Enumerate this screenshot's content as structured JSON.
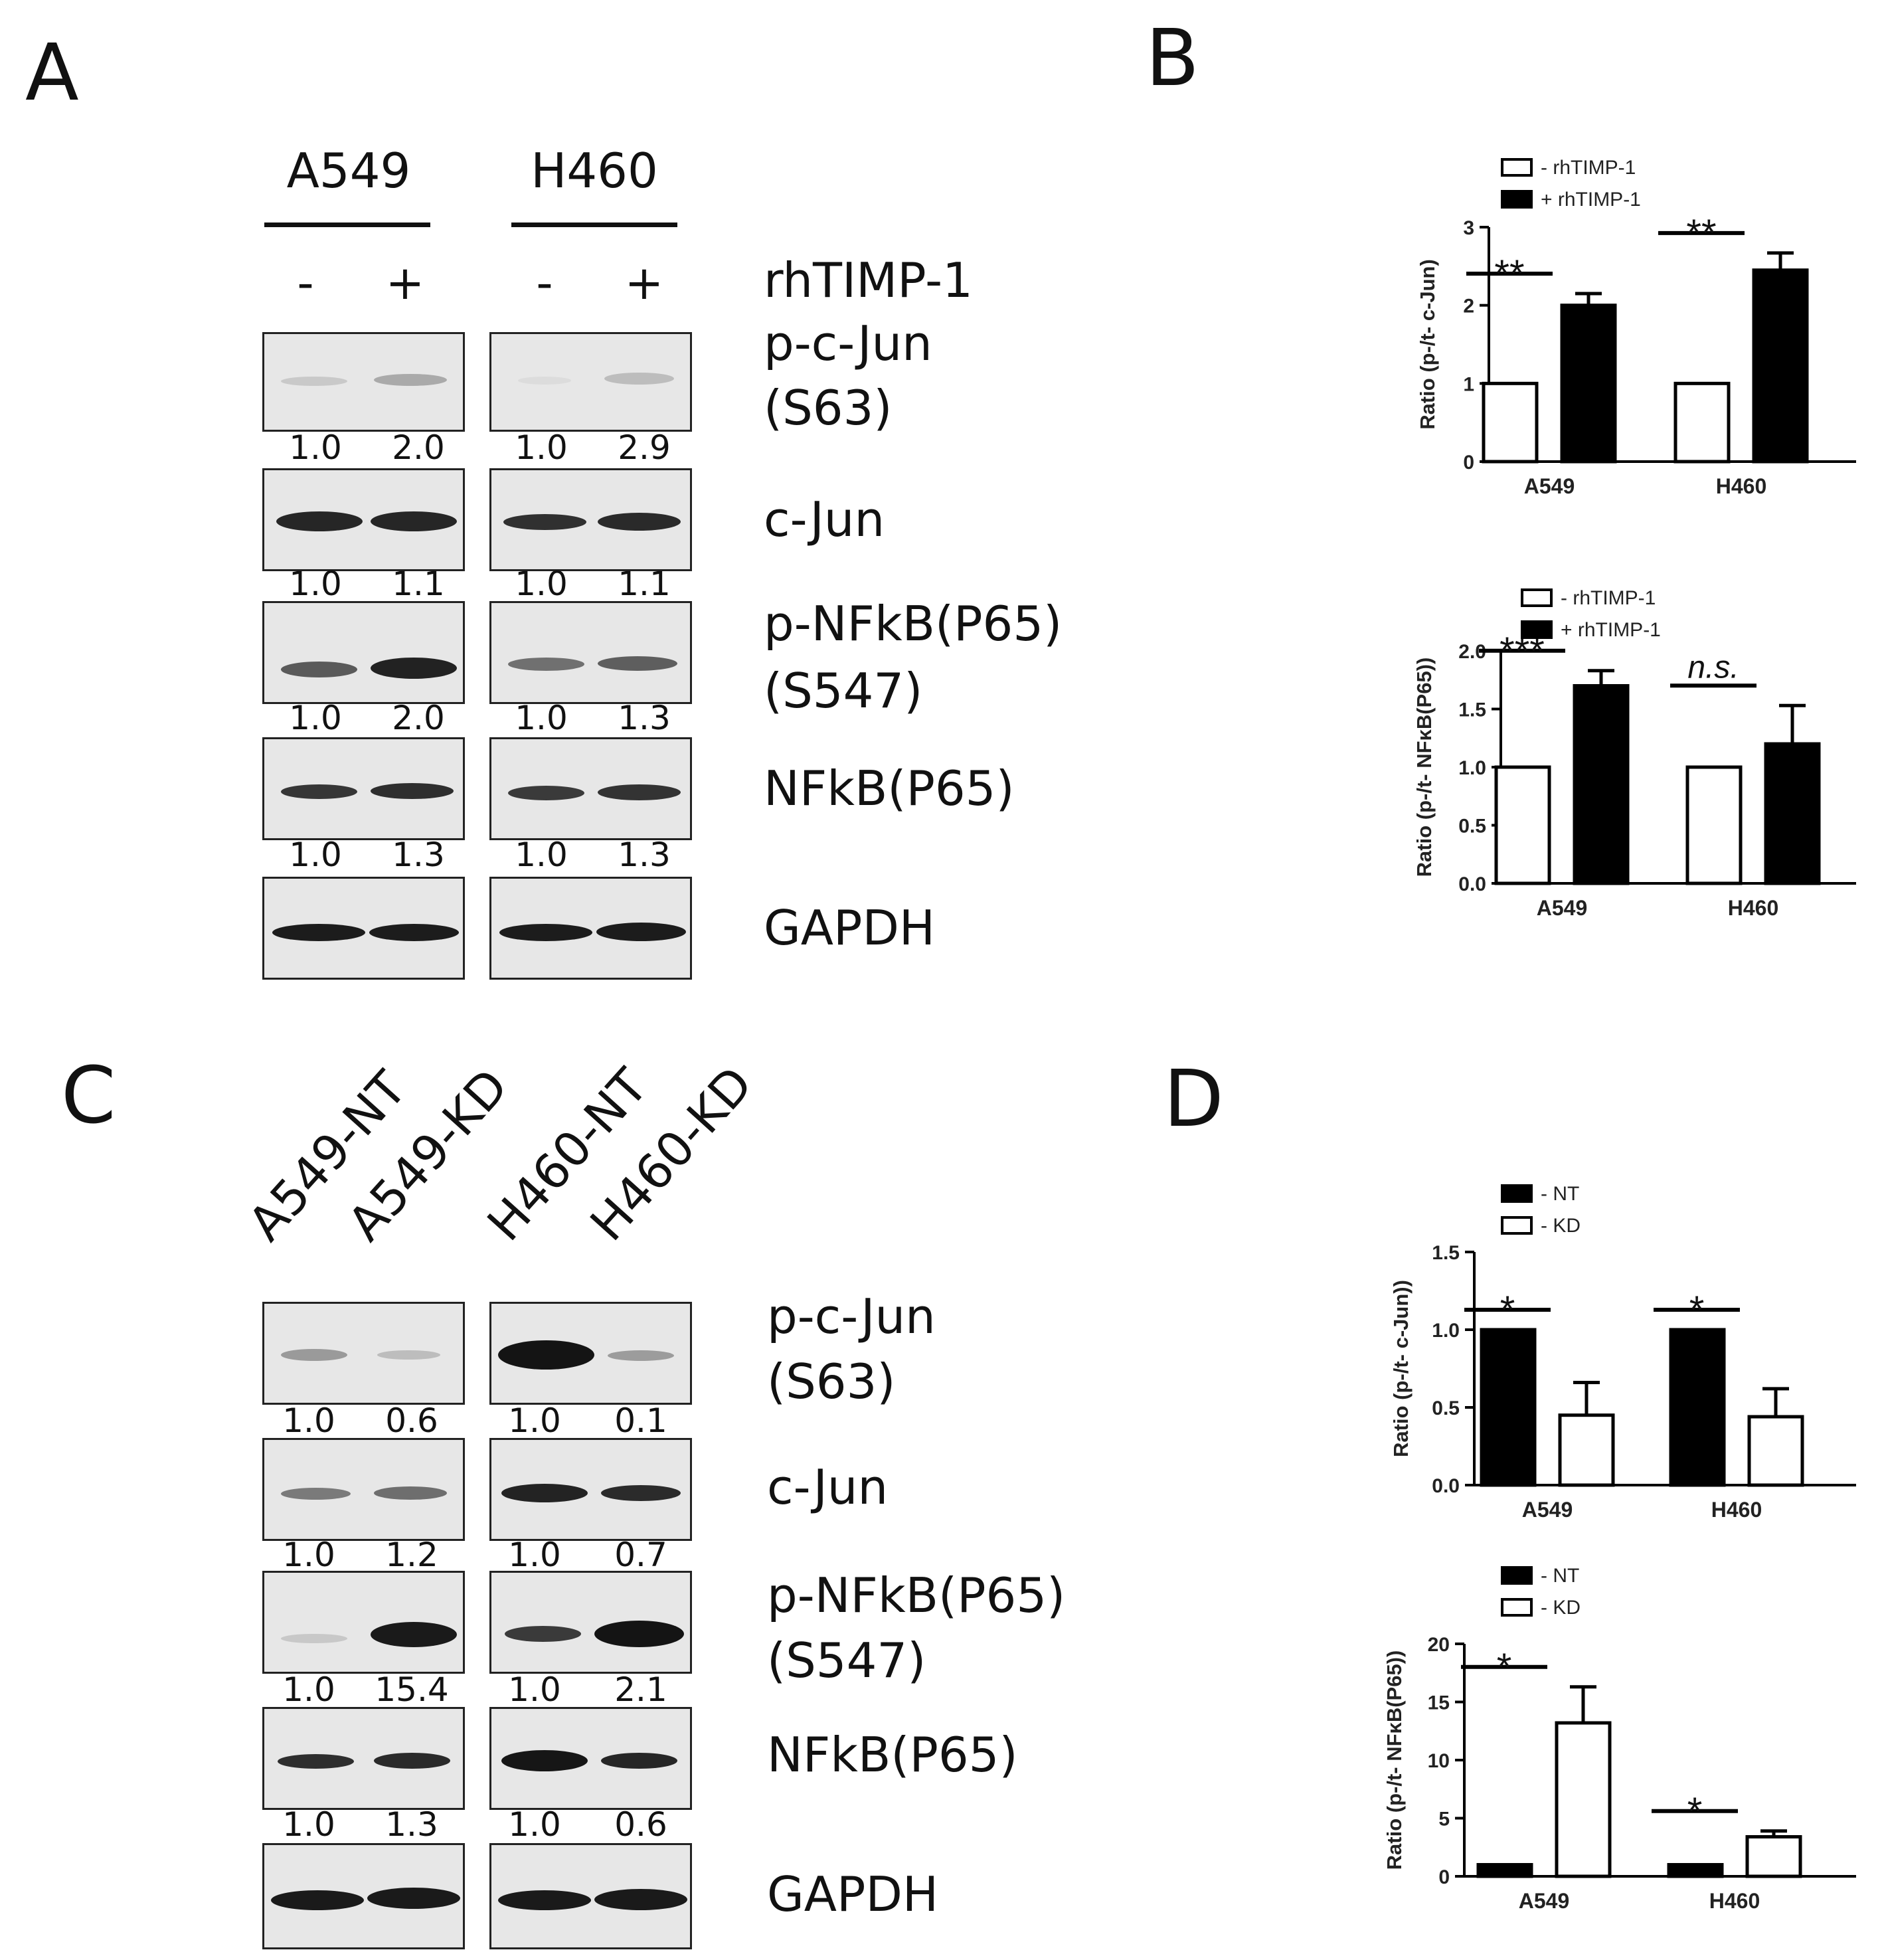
{
  "panels": {
    "A": "A",
    "B": "B",
    "C": "C",
    "D": "D"
  },
  "panel_a": {
    "cell_lines": [
      "A549",
      "H460"
    ],
    "treatment_label": "rhTIMP-1",
    "treat_signs": [
      "-",
      "+",
      "-",
      "+"
    ],
    "blot_labels": [
      "p-c-Jun",
      "(S63)",
      "c-Jun",
      "p-NFkB(P65)",
      "(S547)",
      "NFkB(P65)",
      "GAPDH"
    ],
    "quant": [
      [
        "1.0",
        "2.0",
        "1.0",
        "2.9"
      ],
      [
        "1.0",
        "1.1",
        "1.0",
        "1.1"
      ],
      [
        "1.0",
        "2.0",
        "1.0",
        "1.3"
      ],
      [
        "1.0",
        "1.3",
        "1.0",
        "1.3"
      ]
    ]
  },
  "panel_c": {
    "lanes": [
      "A549-NT",
      "A549-KD",
      "H460-NT",
      "H460-KD"
    ],
    "blot_labels": [
      "p-c-Jun",
      "(S63)",
      "c-Jun",
      "p-NFkB(P65)",
      "(S547)",
      "NFkB(P65)",
      "GAPDH"
    ],
    "quant": [
      [
        "1.0",
        "0.6",
        "1.0",
        "0.1"
      ],
      [
        "1.0",
        "1.2",
        "1.0",
        "0.7"
      ],
      [
        "1.0",
        "15.4",
        "1.0",
        "2.1"
      ],
      [
        "1.0",
        "1.3",
        "1.0",
        "0.6"
      ]
    ]
  },
  "chart_data": [
    {
      "type": "bar",
      "panel": "B",
      "categories": [
        "A549",
        "H460"
      ],
      "series": [
        {
          "name": "- rhTIMP-1",
          "values": [
            1,
            1
          ],
          "errors": [
            0,
            0
          ],
          "fill": "#ffffff"
        },
        {
          "name": "+ rhTIMP-1",
          "values": [
            2.0,
            2.45
          ],
          "errors": [
            0.15,
            0.22
          ],
          "fill": "#000000"
        }
      ],
      "ylabel": "Ratio (p-/t- c-Jun)",
      "ylim": [
        0,
        3
      ],
      "yticks": [
        0,
        1,
        2,
        3
      ],
      "yticklabels": [
        "0",
        "1",
        "2",
        "3"
      ],
      "significance": [
        "**",
        "**"
      ],
      "legend": "top-left"
    },
    {
      "type": "bar",
      "panel": "B",
      "categories": [
        "A549",
        "H460"
      ],
      "series": [
        {
          "name": "- rhTIMP-1",
          "values": [
            1,
            1
          ],
          "errors": [
            0,
            0
          ],
          "fill": "#ffffff"
        },
        {
          "name": "+ rhTIMP-1",
          "values": [
            1.7,
            1.2
          ],
          "errors": [
            0.13,
            0.33
          ],
          "fill": "#000000"
        }
      ],
      "ylabel": "Ratio (p-/t- NFκB(P65))",
      "ylim": [
        0,
        2.0
      ],
      "yticks": [
        0,
        0.5,
        1.0,
        1.5,
        2.0
      ],
      "yticklabels": [
        "0.0",
        "0.5",
        "1.0",
        "1.5",
        "2.0"
      ],
      "significance": [
        "***",
        "n.s."
      ],
      "legend": "top-left"
    },
    {
      "type": "bar",
      "panel": "D",
      "categories": [
        "A549",
        "H460"
      ],
      "series": [
        {
          "name": "- NT",
          "values": [
            1,
            1
          ],
          "errors": [
            0,
            0
          ],
          "fill": "#000000"
        },
        {
          "name": "- KD",
          "values": [
            0.45,
            0.44
          ],
          "errors": [
            0.21,
            0.18
          ],
          "fill": "#ffffff"
        }
      ],
      "ylabel": "Ratio (p-/t- c-Jun))",
      "ylim": [
        0,
        1.5
      ],
      "yticks": [
        0,
        0.5,
        1.0,
        1.5
      ],
      "yticklabels": [
        "0.0",
        "0.5",
        "1.0",
        "1.5"
      ],
      "significance": [
        "*",
        "*"
      ],
      "legend": "top-left"
    },
    {
      "type": "bar",
      "panel": "D",
      "categories": [
        "A549",
        "H460"
      ],
      "series": [
        {
          "name": "- NT",
          "values": [
            1,
            1
          ],
          "errors": [
            0,
            0
          ],
          "fill": "#000000"
        },
        {
          "name": "- KD",
          "values": [
            13.2,
            3.4
          ],
          "errors": [
            3.1,
            0.5
          ],
          "fill": "#ffffff"
        }
      ],
      "ylabel": "Ratio (p-/t- NFκB(P65))",
      "ylim": [
        0,
        20
      ],
      "yticks": [
        0,
        5,
        10,
        15,
        20
      ],
      "yticklabels": [
        "0",
        "5",
        "10",
        "15",
        "20"
      ],
      "significance": [
        "*",
        "*"
      ],
      "legend": "top-left"
    }
  ]
}
